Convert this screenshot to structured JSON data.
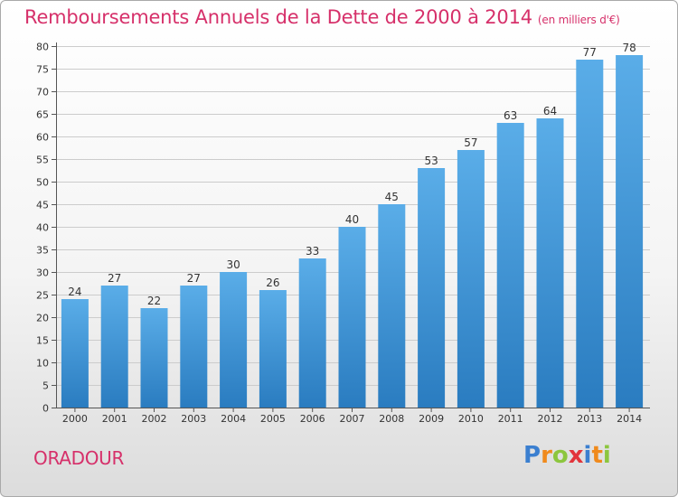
{
  "header": {
    "title": "Remboursements Annuels de la Dette de 2000 à 2014",
    "unit": "(en milliers d'€)"
  },
  "footer": {
    "city": "ORADOUR",
    "logo_letters": [
      "P",
      "r",
      "o",
      "x",
      "i",
      "t",
      "i"
    ]
  },
  "colors": {
    "title": "#d6306a",
    "bar_top": "#5aade8",
    "bar_bottom": "#2a7cc0",
    "grid": "#cccccc"
  },
  "chart_data": {
    "type": "bar",
    "title": "Remboursements Annuels de la Dette de 2000 à 2014",
    "xlabel": "",
    "ylabel": "",
    "ylim": [
      0,
      80
    ],
    "ytick_step": 5,
    "grid": true,
    "categories": [
      "2000",
      "2001",
      "2002",
      "2003",
      "2004",
      "2005",
      "2006",
      "2007",
      "2008",
      "2009",
      "2010",
      "2011",
      "2012",
      "2013",
      "2014"
    ],
    "values": [
      24,
      27,
      22,
      27,
      30,
      26,
      33,
      40,
      45,
      53,
      57,
      63,
      64,
      77,
      78
    ]
  }
}
